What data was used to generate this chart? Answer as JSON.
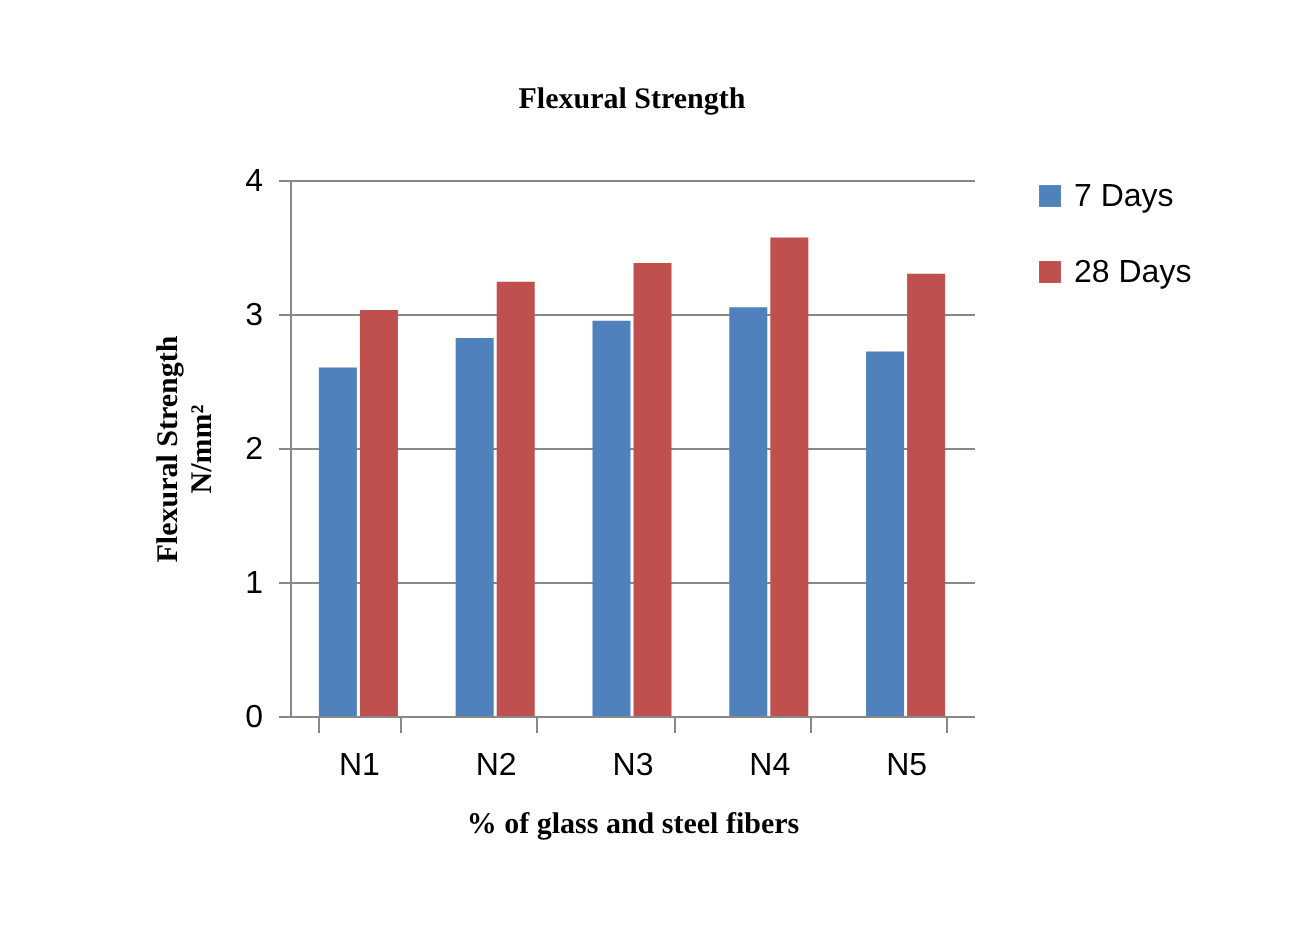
{
  "chart_data": {
    "type": "bar",
    "title": "Flexural Strength",
    "xlabel": "% of glass and steel fibers",
    "ylabel": "Flexural Strength N/mm²",
    "categories": [
      "N1",
      "N2",
      "N3",
      "N4",
      "N5"
    ],
    "series": [
      {
        "name": "7 Days",
        "color": "#4f81bd",
        "values": [
          2.6,
          2.82,
          2.95,
          3.05,
          2.72
        ]
      },
      {
        "name": "28 Days",
        "color": "#c0504d",
        "values": [
          3.03,
          3.24,
          3.38,
          3.57,
          3.3
        ]
      }
    ],
    "ylim": [
      0,
      4
    ],
    "yticks": [
      0,
      1,
      2,
      3,
      4
    ],
    "grid": "y",
    "legend": "right"
  }
}
